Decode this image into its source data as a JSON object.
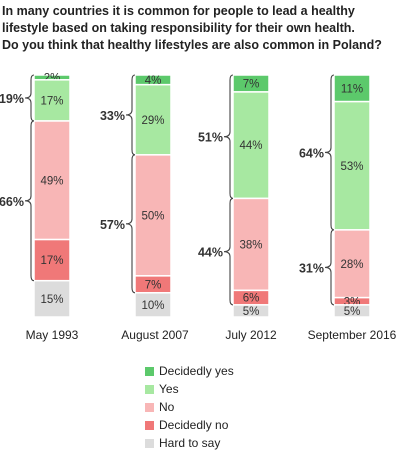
{
  "title_lines": [
    "In many countries it is common for people to lead a healthy",
    "lifestyle based on taking responsibility for their own health.",
    "Do you think that healthy lifestyles are also common in Poland?"
  ],
  "colors": {
    "decidedly_yes": "#5cc96b",
    "yes": "#a7e8a1",
    "no": "#f8b6b6",
    "decidedly_no": "#f07878",
    "hard_to_say": "#dcdcdc"
  },
  "chart_data": {
    "type": "bar",
    "stacked": true,
    "value_unit": "%",
    "categories": [
      "May 1993",
      "August 2007",
      "July 2012",
      "September 2016"
    ],
    "series": [
      {
        "name": "Decidedly yes",
        "key": "decidedly_yes",
        "values": [
          2,
          4,
          7,
          11
        ]
      },
      {
        "name": "Yes",
        "key": "yes",
        "values": [
          17,
          29,
          44,
          53
        ]
      },
      {
        "name": "No",
        "key": "no",
        "values": [
          49,
          50,
          38,
          28
        ]
      },
      {
        "name": "Decidedly no",
        "key": "decidedly_no",
        "values": [
          17,
          7,
          6,
          3
        ]
      },
      {
        "name": "Hard to say",
        "key": "hard_to_say",
        "values": [
          15,
          10,
          5,
          5
        ]
      }
    ],
    "bracket_totals": {
      "yes_total": [
        "19%",
        "33%",
        "51%",
        "64%"
      ],
      "no_total": [
        "66%",
        "57%",
        "44%",
        "31%"
      ]
    },
    "legend_position": "bottom"
  }
}
